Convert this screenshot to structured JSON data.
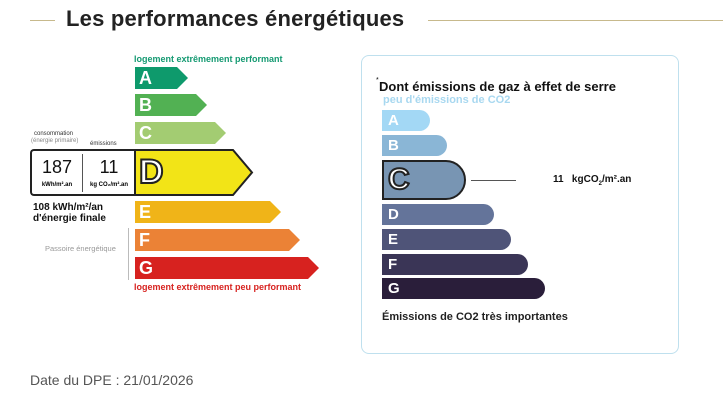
{
  "title": "Les performances énergétiques",
  "energy": {
    "top_label": "logement extrêmement performant",
    "bottom_label": "logement extrêmement peu performant",
    "classes": [
      {
        "letter": "A",
        "color": "#0e9a6c"
      },
      {
        "letter": "B",
        "color": "#52b153"
      },
      {
        "letter": "C",
        "color": "#a3cc72"
      },
      {
        "letter": "D",
        "color": "#f2e417"
      },
      {
        "letter": "E",
        "color": "#f0b418"
      },
      {
        "letter": "F",
        "color": "#eb8236"
      },
      {
        "letter": "G",
        "color": "#d7221f"
      }
    ],
    "current": "D",
    "consumption_label": "consommation",
    "consumption_sub": "(énergie primaire)",
    "emissions_label": "émissions",
    "consumption_value": "187",
    "consumption_unit": "kWh/m².an",
    "emissions_value": "11",
    "emissions_unit": "kg CO₂/m².an",
    "final_energy_line1": "108 kWh/m²/an",
    "final_energy_line2": "d'énergie finale",
    "passoire": "Passoire énergétique"
  },
  "ges": {
    "title": "Dont émissions de gaz à effet de serre",
    "asterisk": "*",
    "top_label": "peu d'émissions de CO2",
    "bottom_label": "Émissions de CO2 très importantes",
    "classes": [
      {
        "letter": "A",
        "color": "#a3d8f5"
      },
      {
        "letter": "B",
        "color": "#8ab6d6"
      },
      {
        "letter": "C",
        "color": "#7895b3"
      },
      {
        "letter": "D",
        "color": "#64749a"
      },
      {
        "letter": "E",
        "color": "#4f5478"
      },
      {
        "letter": "F",
        "color": "#3a3556"
      },
      {
        "letter": "G",
        "color": "#2a1e3a"
      }
    ],
    "current": "C",
    "value": "11",
    "unit_pre": "kgCO",
    "unit_sub": "2",
    "unit_post": "/m².an"
  },
  "date_label": "Date du DPE : 21/01/2026"
}
